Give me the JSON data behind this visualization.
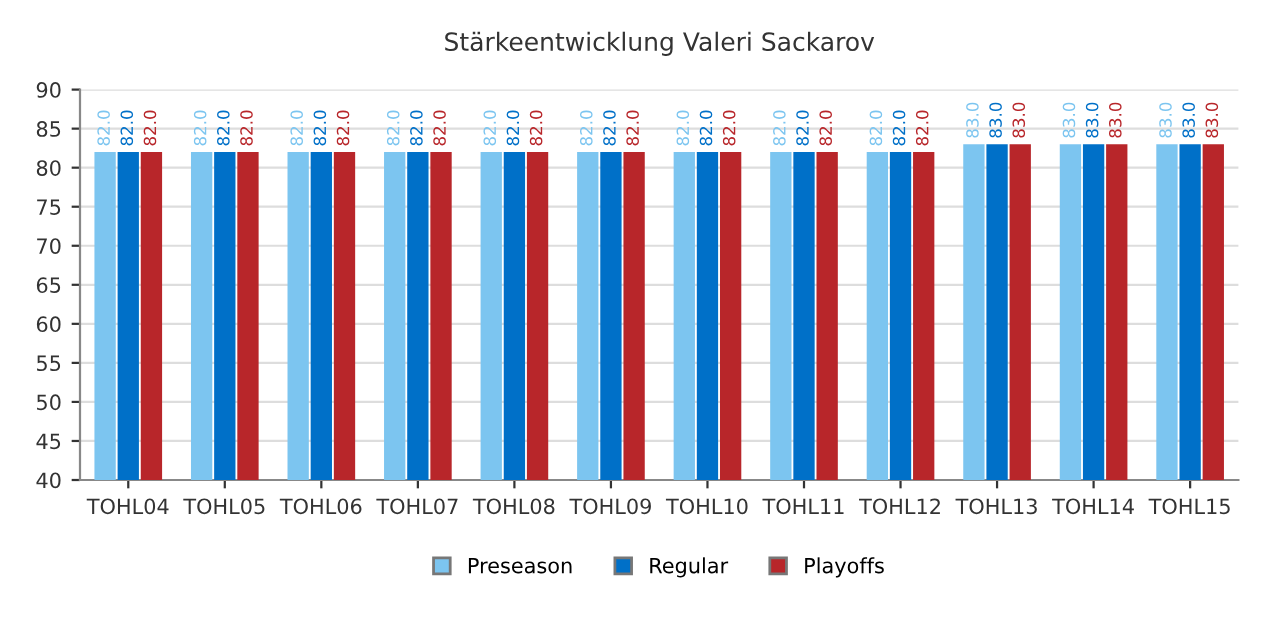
{
  "chart_data": {
    "type": "bar",
    "title": "Stärkeentwicklung Valeri Sackarov",
    "categories": [
      "TOHL04",
      "TOHL05",
      "TOHL06",
      "TOHL07",
      "TOHL08",
      "TOHL09",
      "TOHL10",
      "TOHL11",
      "TOHL12",
      "TOHL13",
      "TOHL14",
      "TOHL15"
    ],
    "series": [
      {
        "name": "Preseason",
        "color": "#7cc5f0",
        "values": [
          82,
          82,
          82,
          82,
          82,
          82,
          82,
          82,
          82,
          83,
          83,
          83
        ],
        "value_labels": [
          "82.0",
          "82.0",
          "82.0",
          "82.0",
          "82.0",
          "82.0",
          "82.0",
          "82.0",
          "82.0",
          "83.0",
          "83.0",
          "83.0"
        ]
      },
      {
        "name": "Regular",
        "color": "#0070c8",
        "values": [
          82,
          82,
          82,
          82,
          82,
          82,
          82,
          82,
          82,
          83,
          83,
          83
        ],
        "value_labels": [
          "82.0",
          "82.0",
          "82.0",
          "82.0",
          "82.0",
          "82.0",
          "82.0",
          "82.0",
          "82.0",
          "83.0",
          "83.0",
          "83.0"
        ]
      },
      {
        "name": "Playoffs",
        "color": "#b8262a",
        "values": [
          82,
          82,
          82,
          82,
          82,
          82,
          82,
          82,
          82,
          83,
          83,
          83
        ],
        "value_labels": [
          "82.0",
          "82.0",
          "82.0",
          "82.0",
          "82.0",
          "82.0",
          "82.0",
          "82.0",
          "82.0",
          "83.0",
          "83.0",
          "83.0"
        ]
      }
    ],
    "ylim": [
      40,
      90
    ],
    "yticks": [
      40,
      45,
      50,
      55,
      60,
      65,
      70,
      75,
      80,
      85,
      90
    ],
    "grid": "y",
    "legend": "bottom"
  }
}
